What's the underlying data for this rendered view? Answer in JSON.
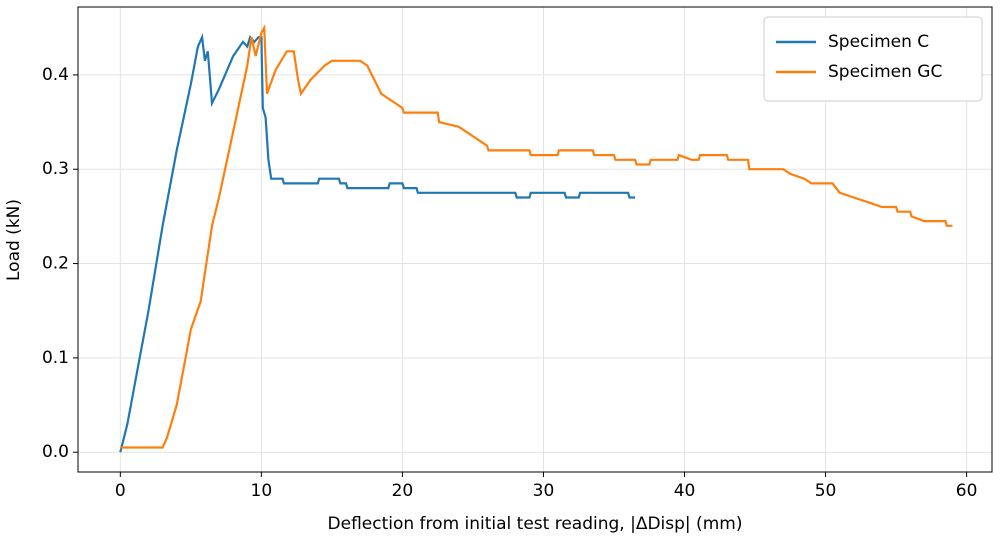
{
  "chart_data": {
    "type": "line",
    "xlabel": "Deflection from initial test reading, |ΔDisp| (mm)",
    "ylabel": "Load (kN)",
    "xlim": [
      -3,
      61.8
    ],
    "ylim": [
      -0.021,
      0.472
    ],
    "xticks": [
      0,
      10,
      20,
      30,
      40,
      50,
      60
    ],
    "yticks": [
      {
        "value": 0,
        "label": "0.0"
      },
      0.1,
      0.2,
      0.3,
      0.4
    ],
    "grid": true,
    "legend": "upper right",
    "series": [
      {
        "name": "Specimen C",
        "color": "#1f77b4",
        "x": [
          0,
          0.5,
          1,
          2,
          3,
          4,
          5,
          5.5,
          5.8,
          6,
          6.2,
          6.5,
          7,
          8,
          8.7,
          9,
          9.2,
          9.5,
          9.8,
          10,
          10.1,
          10.3,
          10.5,
          10.7,
          11.5,
          11.6,
          14,
          14.1,
          15.5,
          15.6,
          16,
          16.1,
          19,
          19.1,
          20,
          20.1,
          21,
          21.1,
          28,
          28.1,
          29,
          29.1,
          31.5,
          31.6,
          32.5,
          32.6,
          36,
          36.1,
          36.5
        ],
        "values": [
          0,
          0.03,
          0.07,
          0.15,
          0.24,
          0.32,
          0.39,
          0.43,
          0.44,
          0.415,
          0.425,
          0.37,
          0.385,
          0.42,
          0.435,
          0.43,
          0.44,
          0.435,
          0.44,
          0.44,
          0.365,
          0.355,
          0.31,
          0.29,
          0.29,
          0.285,
          0.285,
          0.29,
          0.29,
          0.285,
          0.285,
          0.28,
          0.28,
          0.285,
          0.285,
          0.28,
          0.28,
          0.275,
          0.275,
          0.27,
          0.27,
          0.275,
          0.275,
          0.27,
          0.27,
          0.275,
          0.275,
          0.27,
          0.27
        ]
      },
      {
        "name": "Specimen GC",
        "color": "#ff7f0e",
        "x": [
          0,
          3,
          3.3,
          4,
          4.5,
          5,
          5.7,
          6,
          6.5,
          7,
          8,
          9,
          9.3,
          9.6,
          10,
          10.2,
          10.4,
          11,
          11.8,
          12.3,
          12.6,
          12.8,
          13.5,
          14.5,
          15,
          17,
          17.5,
          18,
          18.5,
          19,
          20,
          20.1,
          22.5,
          22.6,
          24,
          25,
          26,
          26.1,
          29,
          29.1,
          31,
          31.1,
          33.5,
          33.6,
          35,
          35.1,
          36.5,
          36.6,
          37.5,
          37.6,
          39.5,
          39.6,
          40.5,
          41,
          41.1,
          43,
          43.1,
          44.5,
          44.6,
          47,
          47.5,
          48.5,
          49,
          50.5,
          51,
          52,
          53,
          54,
          55,
          55.1,
          56,
          56.1,
          57,
          58.5,
          58.6,
          59
        ],
        "values": [
          0.005,
          0.005,
          0.015,
          0.05,
          0.09,
          0.13,
          0.16,
          0.19,
          0.24,
          0.27,
          0.34,
          0.41,
          0.44,
          0.42,
          0.445,
          0.45,
          0.38,
          0.405,
          0.425,
          0.425,
          0.395,
          0.38,
          0.395,
          0.41,
          0.415,
          0.415,
          0.41,
          0.395,
          0.38,
          0.375,
          0.365,
          0.36,
          0.36,
          0.35,
          0.345,
          0.335,
          0.325,
          0.32,
          0.32,
          0.315,
          0.315,
          0.32,
          0.32,
          0.315,
          0.315,
          0.31,
          0.31,
          0.305,
          0.305,
          0.31,
          0.31,
          0.315,
          0.31,
          0.31,
          0.315,
          0.315,
          0.31,
          0.31,
          0.3,
          0.3,
          0.295,
          0.29,
          0.285,
          0.285,
          0.275,
          0.27,
          0.265,
          0.26,
          0.26,
          0.255,
          0.255,
          0.25,
          0.245,
          0.245,
          0.24,
          0.24
        ]
      }
    ]
  }
}
